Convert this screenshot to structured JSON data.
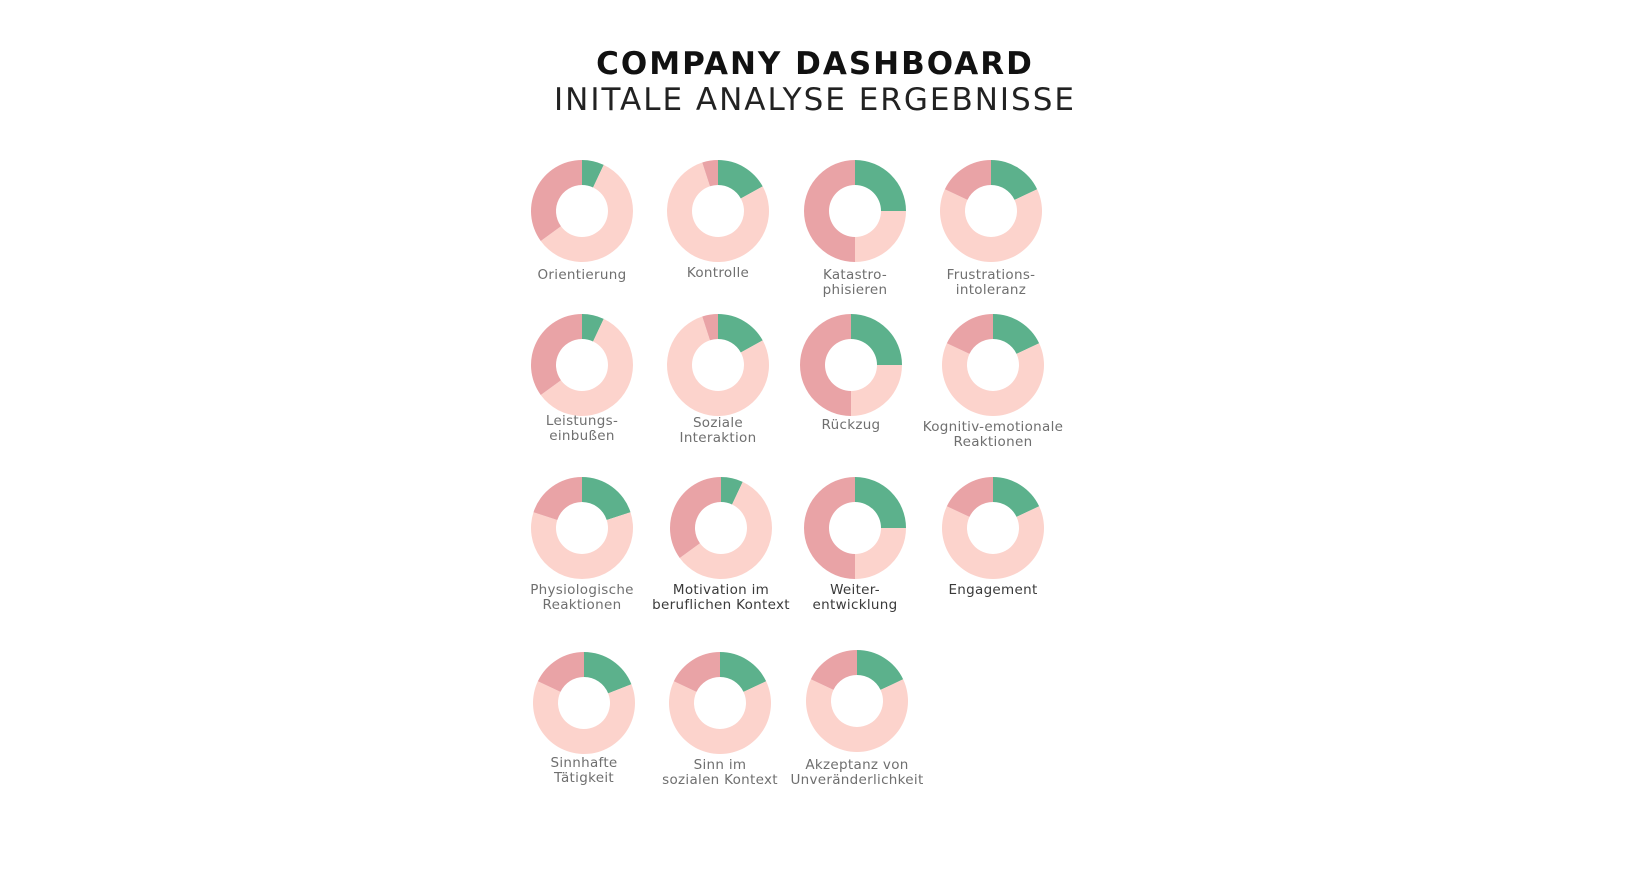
{
  "header": {
    "title": "COMPANY DASHBOARD",
    "subtitle": "INITALE ANALYSE ERGEBNISSE"
  },
  "colors": {
    "positive": "#5cb18c",
    "negative": "#e9a3a6",
    "neutral": "#fcd3cc",
    "background": "#ffffff"
  },
  "chart_data": {
    "type": "donut-grid",
    "segment_order": [
      "positive",
      "neutral",
      "negative"
    ],
    "charts": [
      {
        "label": "Orientierung",
        "positive": 7,
        "neutral": 58,
        "negative": 35
      },
      {
        "label": "Kontrolle",
        "positive": 17,
        "neutral": 78,
        "negative": 5
      },
      {
        "label": "Katastro-\nphisieren",
        "positive": 25,
        "neutral": 25,
        "negative": 50
      },
      {
        "label": "Frustrations-\nintoleranz",
        "positive": 18,
        "neutral": 64,
        "negative": 18
      },
      {
        "label": "Leistungs-\neinbußen",
        "positive": 7,
        "neutral": 58,
        "negative": 35
      },
      {
        "label": "Soziale\nInteraktion",
        "positive": 17,
        "neutral": 78,
        "negative": 5
      },
      {
        "label": "Rückzug",
        "positive": 25,
        "neutral": 25,
        "negative": 50
      },
      {
        "label": "Kognitiv-emotionale\nReaktionen",
        "positive": 18,
        "neutral": 64,
        "negative": 18
      },
      {
        "label": "Physiologische\nReaktionen",
        "positive": 20,
        "neutral": 60,
        "negative": 20
      },
      {
        "label": "Motivation im\nberuflichen Kontext",
        "positive": 7,
        "neutral": 58,
        "negative": 35
      },
      {
        "label": "Weiter-\nentwicklung",
        "positive": 25,
        "neutral": 25,
        "negative": 50
      },
      {
        "label": "Engagement",
        "positive": 18,
        "neutral": 64,
        "negative": 18
      },
      {
        "label": "Sinnhafte\nTätigkeit",
        "positive": 19,
        "neutral": 63,
        "negative": 18
      },
      {
        "label": "Sinn im\nsozialen Kontext",
        "positive": 18,
        "neutral": 64,
        "negative": 18
      },
      {
        "label": "Akzeptanz von\nUnveränderlichkeit",
        "positive": 18,
        "neutral": 64,
        "negative": 18
      }
    ]
  }
}
